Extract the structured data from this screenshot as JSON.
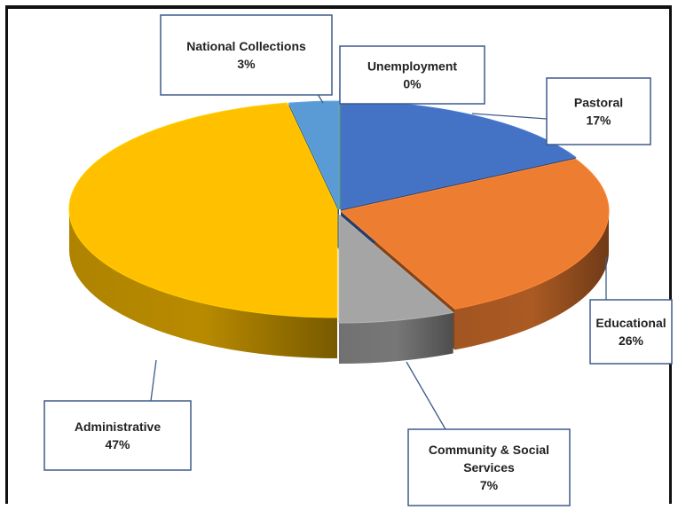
{
  "chart_data": {
    "type": "pie",
    "style": "3d-exploded",
    "title": "",
    "legend": "none",
    "slices": [
      {
        "label": "Unemployment",
        "value": 0,
        "percent_label": "0%",
        "color": "#5B9A3A"
      },
      {
        "label": "Pastoral",
        "value": 17,
        "percent_label": "17%",
        "color": "#4472C4"
      },
      {
        "label": "Educational",
        "value": 26,
        "percent_label": "26%",
        "color": "#ED7D31"
      },
      {
        "label": "Community & Social Services",
        "value": 7,
        "percent_label": "7%",
        "color": "#A5A5A5"
      },
      {
        "label": "Administrative",
        "value": 47,
        "percent_label": "47%",
        "color": "#FFC000"
      },
      {
        "label": "National Collections",
        "value": 3,
        "percent_label": "3%",
        "color": "#5B9BD5"
      }
    ]
  }
}
